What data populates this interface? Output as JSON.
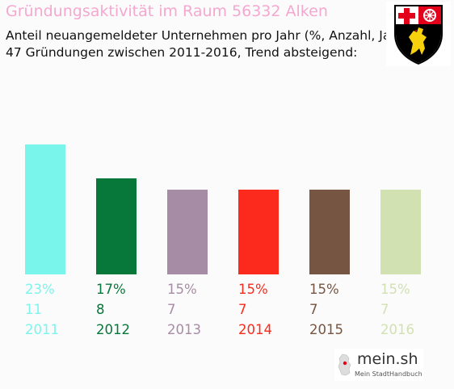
{
  "header": {
    "title": "Gründungsaktivität im Raum 56332 Alken",
    "subtitle_line1": "Anteil neuangemeldeter Unternehmen pro Jahr (%, Anzahl, Jahr)",
    "subtitle_line2": "47 Gründungen zwischen 2011-2016, Trend absteigend:"
  },
  "logo": {
    "name": "mein.sh",
    "tagline": "Mein StadtHandbuch"
  },
  "coat_of_arms_icon": "rhineland-palatinate-coat-of-arms-icon",
  "chart_data": {
    "type": "bar",
    "categories": [
      "2011",
      "2012",
      "2013",
      "2014",
      "2015",
      "2016"
    ],
    "values": [
      23,
      17,
      15,
      15,
      15,
      15
    ],
    "percent_labels": [
      "23%",
      "17%",
      "15%",
      "15%",
      "15%",
      "15%"
    ],
    "counts": [
      11,
      8,
      7,
      7,
      7,
      7
    ],
    "colors": [
      "#7af5ec",
      "#08773a",
      "#a78ca6",
      "#fb2a1c",
      "#765542",
      "#d2e1b2"
    ],
    "ylim": [
      0,
      23
    ],
    "grid": false,
    "legend": "none"
  }
}
